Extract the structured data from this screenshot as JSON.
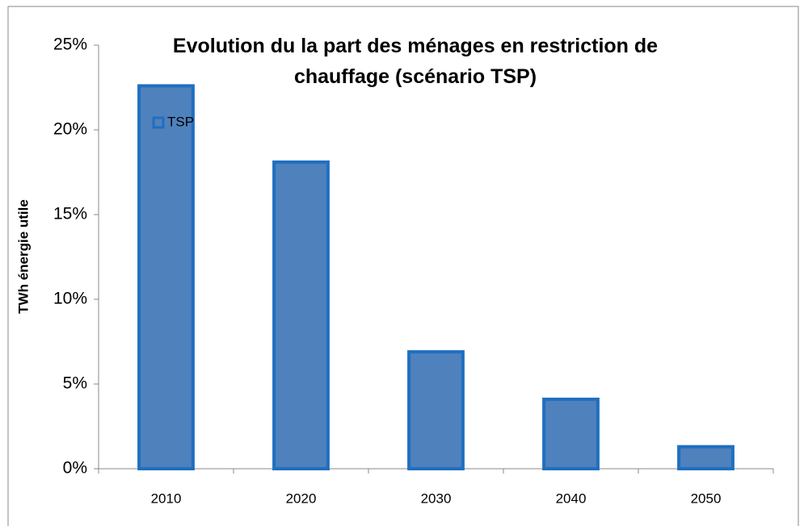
{
  "chart_data": {
    "type": "bar",
    "title": "Evolution du la part des ménages en restriction de chauffage (scénario TSP)",
    "y_label": "TWh énergie utile",
    "categories": [
      "2010",
      "2020",
      "2030",
      "2040",
      "2050"
    ],
    "series": [
      {
        "name": "TSP",
        "color": "#4f81bd",
        "values": [
          22.6,
          18.1,
          6.9,
          4.1,
          1.3
        ]
      }
    ],
    "ylim": [
      0,
      25
    ],
    "yticks": [
      {
        "value": 0,
        "label": "0%"
      },
      {
        "value": 5,
        "label": "5%"
      },
      {
        "value": 10,
        "label": "10%"
      },
      {
        "value": 15,
        "label": "15%"
      },
      {
        "value": 20,
        "label": "20%"
      },
      {
        "value": 25,
        "label": "25%"
      }
    ],
    "grid": false,
    "legend": "top-left"
  }
}
